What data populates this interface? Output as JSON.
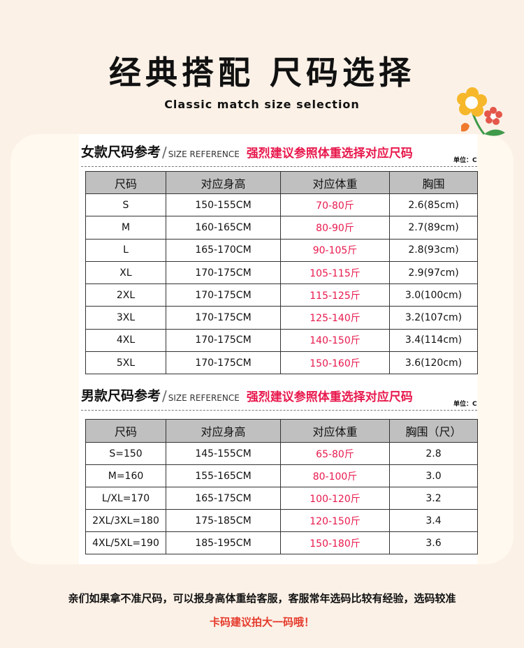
{
  "title": "经典搭配 尺码选择",
  "subtitle": "Classic match size selection",
  "women": {
    "heading": "女款尺码参考",
    "slash": "/",
    "en": "SIZE REFERENCE",
    "advice": "强烈建议参照体重选择对应尺码",
    "unit": "单位：C",
    "columns": [
      "尺码",
      "对应身高",
      "对应体重",
      "胸围"
    ],
    "rows": [
      [
        "S",
        "150-155CM",
        "70-80斤",
        "2.6(85cm)"
      ],
      [
        "M",
        "160-165CM",
        "80-90斤",
        "2.7(89cm)"
      ],
      [
        "L",
        "165-170CM",
        "90-105斤",
        "2.8(93cm)"
      ],
      [
        "XL",
        "170-175CM",
        "105-115斤",
        "2.9(97cm)"
      ],
      [
        "2XL",
        "170-175CM",
        "115-125斤",
        "3.0(100cm)"
      ],
      [
        "3XL",
        "170-175CM",
        "125-140斤",
        "3.2(107cm)"
      ],
      [
        "4XL",
        "170-175CM",
        "140-150斤",
        "3.4(114cm)"
      ],
      [
        "5XL",
        "170-175CM",
        "150-160斤",
        "3.6(120cm)"
      ]
    ]
  },
  "men": {
    "heading": "男款尺码参考",
    "slash": "/",
    "en": "SIZE REFERENCE",
    "advice": "强烈建议参照体重选择对应尺码",
    "unit": "单位：C",
    "columns": [
      "尺码",
      "对应身高",
      "对应体重",
      "胸围（尺）"
    ],
    "rows": [
      [
        "S=150",
        "145-155CM",
        "65-80斤",
        "2.8"
      ],
      [
        "M=160",
        "155-165CM",
        "80-100斤",
        "3.0"
      ],
      [
        "L/XL=170",
        "165-175CM",
        "100-120斤",
        "3.2"
      ],
      [
        "2XL/3XL=180",
        "175-185CM",
        "120-150斤",
        "3.4"
      ],
      [
        "4XL/5XL=190",
        "185-195CM",
        "150-180斤",
        "3.6"
      ]
    ]
  },
  "note": "亲们如果拿不准尺码，可以报身高体重给客服，客服常年选码比较有经验，选码较准",
  "note2": "卡码建议拍大一码哦！",
  "colors": {
    "accent": "#e8194d",
    "background": "#fbf1e7",
    "header": "#c0c0c0"
  }
}
